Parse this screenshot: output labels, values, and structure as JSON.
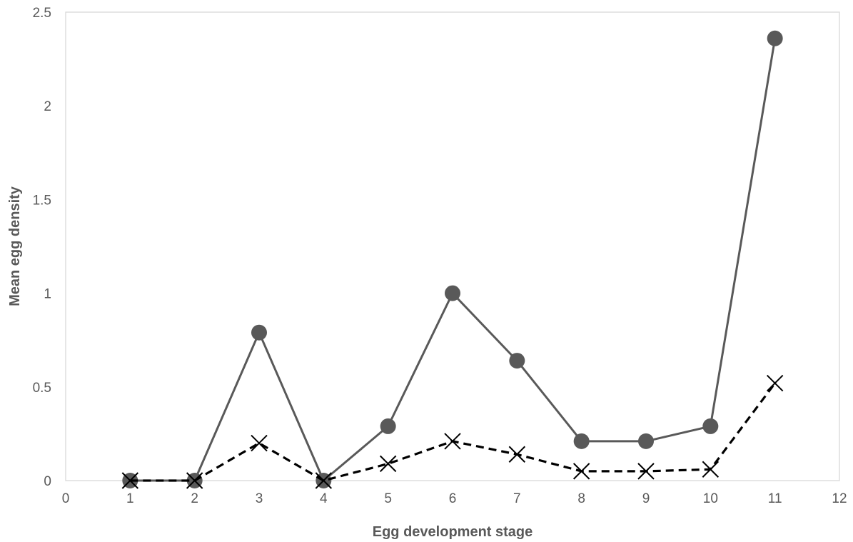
{
  "chart_data": {
    "type": "line",
    "title": "",
    "xlabel": "Egg development stage",
    "ylabel": "Mean egg density",
    "xlim": [
      0,
      12
    ],
    "ylim": [
      0,
      2.5
    ],
    "x_ticks": [
      "0",
      "1",
      "2",
      "3",
      "4",
      "5",
      "6",
      "7",
      "8",
      "9",
      "10",
      "11",
      "12"
    ],
    "y_ticks": [
      "0",
      "0.5",
      "1",
      "1.5",
      "2",
      "2.5"
    ],
    "x": [
      1,
      2,
      3,
      4,
      5,
      6,
      7,
      8,
      9,
      10,
      11
    ],
    "grid": false,
    "legend": "none",
    "series": [
      {
        "marker": "circle",
        "line_style": "solid",
        "color": "#595959",
        "values": [
          0,
          0,
          0.79,
          0,
          0.29,
          1.0,
          0.64,
          0.21,
          0.21,
          0.29,
          2.36
        ]
      },
      {
        "marker": "x",
        "line_style": "dashed",
        "color": "#000000",
        "values": [
          0,
          0,
          0.2,
          0,
          0.09,
          0.21,
          0.14,
          0.05,
          0.05,
          0.06,
          0.52
        ]
      }
    ]
  }
}
